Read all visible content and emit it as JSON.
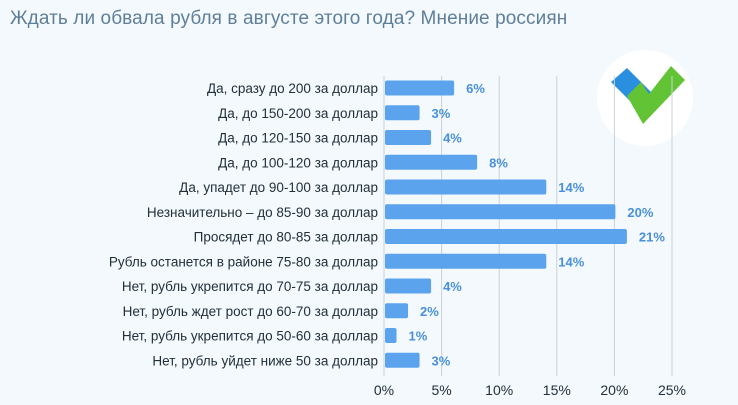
{
  "title": "Ждать ли обвала рубля в августе этого года? Мнение россиян",
  "colors": {
    "bar": "#5ba3ec",
    "value_label": "#4a90d9",
    "grid": "#c9d3da",
    "title": "#5f7f99",
    "logo_blue": "#2b8fe0",
    "logo_green": "#62c335"
  },
  "logo": {
    "icon": "checkmark-logo-icon"
  },
  "chart_data": {
    "type": "bar",
    "orientation": "horizontal",
    "title": "Ждать ли обвала рубля в августе этого года? Мнение россиян",
    "categories": [
      "Да, сразу до 200 за доллар",
      "Да, до 150-200 за доллар",
      "Да, до 120-150 за доллар",
      "Да, до 100-120 за доллар",
      "Да, упадет до 90-100 за доллар",
      "Незначительно – до 85-90 за доллар",
      "Просядет до 80-85 за доллар",
      "Рубль останется в районе 75-80 за доллар",
      "Нет, рубль укрепится до 70-75 за доллар",
      "Нет, рубль ждет рост до 60-70 за доллар",
      "Нет, рубль укрепится до 50-60 за доллар",
      "Нет, рубль уйдет ниже 50 за доллар"
    ],
    "values": [
      6,
      3,
      4,
      8,
      14,
      20,
      21,
      14,
      4,
      2,
      1,
      3
    ],
    "value_labels": [
      "6%",
      "3%",
      "4%",
      "8%",
      "14%",
      "20%",
      "21%",
      "14%",
      "4%",
      "2%",
      "1%",
      "3%"
    ],
    "unit": "%",
    "xlim": [
      0,
      25
    ],
    "x_ticks": [
      0,
      5,
      10,
      15,
      20,
      25
    ],
    "x_tick_labels": [
      "0%",
      "5%",
      "10%",
      "15%",
      "20%",
      "25%"
    ],
    "xlabel": "",
    "ylabel": "",
    "grid": true,
    "legend": "none"
  }
}
